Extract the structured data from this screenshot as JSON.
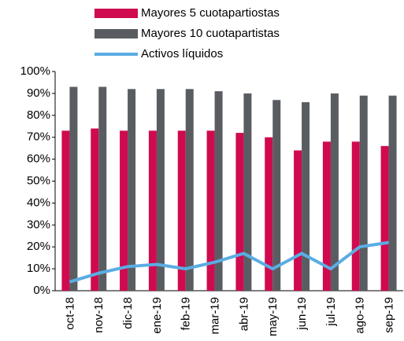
{
  "chart_data": {
    "type": "bar",
    "categories": [
      "oct-18",
      "nov-18",
      "dic-18",
      "ene-19",
      "feb-19",
      "mar-19",
      "abr-19",
      "may-19",
      "jun-19",
      "jul-19",
      "ago-19",
      "sep-19"
    ],
    "series": [
      {
        "name": "Mayores 5 cuotapartiostas",
        "type": "bar",
        "color": "#cf0a4e",
        "values": [
          73,
          74,
          73,
          73,
          73,
          73,
          72,
          70,
          64,
          68,
          68,
          66
        ]
      },
      {
        "name": "Mayores 10 cuotapartistas",
        "type": "bar",
        "color": "#595d61",
        "values": [
          93,
          93,
          92,
          92,
          92,
          91,
          90,
          87,
          86,
          90,
          89,
          89
        ]
      },
      {
        "name": "Activos líquidos",
        "type": "line",
        "color": "#5aade2",
        "values": [
          4,
          8,
          11,
          12,
          10,
          13,
          17,
          10,
          17,
          10,
          20,
          22
        ]
      }
    ],
    "ylim": [
      0,
      100
    ],
    "yticks": [
      {
        "value": 0,
        "label": "0%"
      },
      {
        "value": 10,
        "label": "10%"
      },
      {
        "value": 20,
        "label": "20%"
      },
      {
        "value": 30,
        "label": "30%"
      },
      {
        "value": 40,
        "label": "40%"
      },
      {
        "value": 50,
        "label": "50%"
      },
      {
        "value": 60,
        "label": "60%"
      },
      {
        "value": 70,
        "label": "70%"
      },
      {
        "value": 80,
        "label": "80%"
      },
      {
        "value": 90,
        "label": "90%"
      },
      {
        "value": 100,
        "label": "100%"
      }
    ],
    "legend": "top"
  }
}
